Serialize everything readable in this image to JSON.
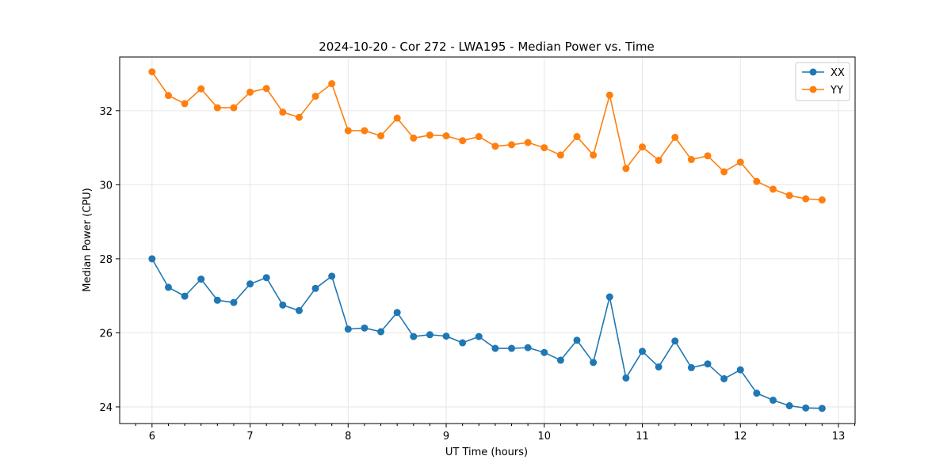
{
  "chart_data": {
    "type": "line",
    "title": "2024-10-20 - Cor 272 - LWA195 - Median Power vs. Time",
    "xlabel": "UT Time (hours)",
    "ylabel": "Median Power (CPU)",
    "xlim": [
      5.67,
      13.17
    ],
    "ylim": [
      23.55,
      33.45
    ],
    "xticks": [
      6,
      7,
      8,
      9,
      10,
      11,
      12,
      13
    ],
    "yticks": [
      24,
      26,
      28,
      30,
      32
    ],
    "grid": true,
    "legend": "top-right",
    "x": [
      6.0,
      6.1667,
      6.3333,
      6.5,
      6.6667,
      6.8333,
      7.0,
      7.1667,
      7.3333,
      7.5,
      7.6667,
      7.8333,
      8.0,
      8.1667,
      8.3333,
      8.5,
      8.6667,
      8.8333,
      9.0,
      9.1667,
      9.3333,
      9.5,
      9.6667,
      9.8333,
      10.0,
      10.1667,
      10.3333,
      10.5,
      10.6667,
      10.8333,
      11.0,
      11.1667,
      11.3333,
      11.5,
      11.6667,
      11.8333,
      12.0,
      12.1667,
      12.3333,
      12.5,
      12.6667,
      12.8333
    ],
    "series": [
      {
        "name": "XX",
        "color": "#1f77b4",
        "values": [
          28.0,
          27.23,
          26.99,
          27.45,
          26.88,
          26.82,
          27.32,
          27.49,
          26.75,
          26.6,
          27.2,
          27.53,
          26.1,
          26.13,
          26.03,
          26.55,
          25.9,
          25.95,
          25.91,
          25.73,
          25.9,
          25.58,
          25.58,
          25.6,
          25.47,
          25.26,
          25.8,
          25.2,
          26.97,
          24.78,
          25.5,
          25.08,
          25.78,
          25.06,
          25.16,
          24.76,
          25.0,
          24.37,
          24.18,
          24.03,
          23.97,
          23.96
        ]
      },
      {
        "name": "YY",
        "color": "#ff7f0e",
        "values": [
          33.05,
          32.41,
          32.19,
          32.59,
          32.08,
          32.08,
          32.5,
          32.6,
          31.96,
          31.82,
          32.39,
          32.73,
          31.46,
          31.46,
          31.32,
          31.8,
          31.26,
          31.34,
          31.32,
          31.19,
          31.3,
          31.04,
          31.08,
          31.14,
          31.0,
          30.8,
          31.3,
          30.8,
          32.42,
          30.44,
          31.02,
          30.66,
          31.28,
          30.68,
          30.78,
          30.35,
          30.61,
          30.09,
          29.88,
          29.71,
          29.62,
          29.59
        ]
      }
    ]
  }
}
